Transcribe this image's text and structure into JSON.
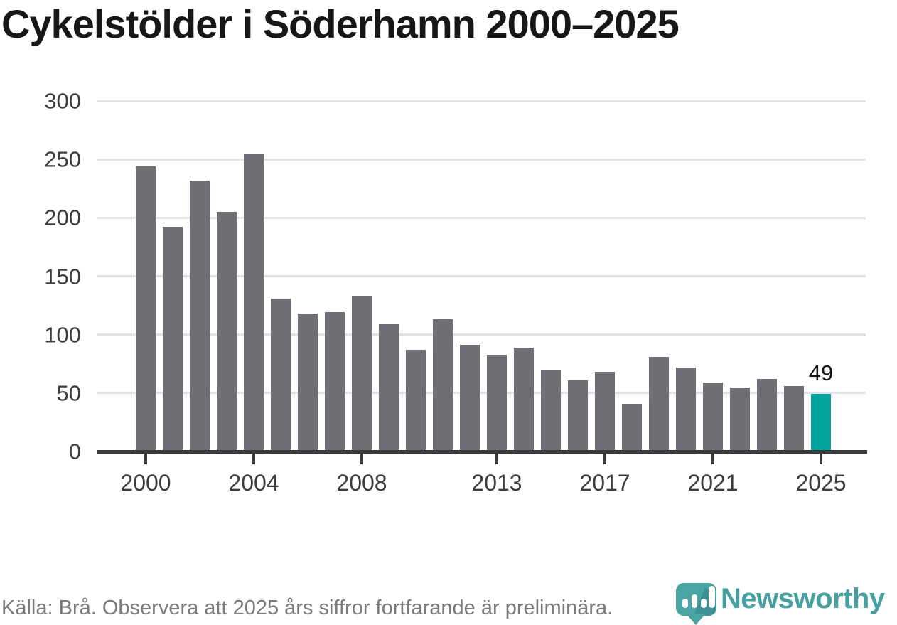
{
  "title": "Cykelstölder i Söderhamn 2000–2025",
  "footer": {
    "source_note": "Källa: Brå. Observera att 2025 års siffror fortfarande är preliminära."
  },
  "branding": {
    "logo_text": "Newsworthy",
    "logo_icon": "newsworthy-pin-barchart-icon",
    "logo_color": "#46a09f",
    "logo_icon_color": "#4aa5a2",
    "logo_icon_shadow_color": "#3d9194"
  },
  "chart_data": {
    "type": "bar",
    "title": "Cykelstölder i Söderhamn 2000–2025",
    "categories": [
      2000,
      2001,
      2002,
      2003,
      2004,
      2005,
      2006,
      2007,
      2008,
      2009,
      2010,
      2011,
      2012,
      2013,
      2014,
      2015,
      2016,
      2017,
      2018,
      2019,
      2020,
      2021,
      2022,
      2023,
      2024,
      2025
    ],
    "values": [
      244,
      192,
      232,
      205,
      255,
      131,
      118,
      119,
      133,
      109,
      87,
      113,
      91,
      83,
      89,
      70,
      61,
      68,
      41,
      81,
      72,
      59,
      55,
      62,
      56,
      49
    ],
    "bar_color": "#6e6e74",
    "highlight": {
      "category": 2025,
      "value": 49,
      "label": "49",
      "color": "#00a49c"
    },
    "y_axis": {
      "ticks": [
        0,
        50,
        100,
        150,
        200,
        250,
        300
      ],
      "range": [
        0,
        300
      ]
    },
    "x_axis": {
      "tick_labels": [
        "2000",
        "2004",
        "2008",
        "2013",
        "2017",
        "2021",
        "2025"
      ]
    },
    "grid": "horizontal",
    "gridline_color": "#e2e2e4",
    "axis_color": "#3a3a3a",
    "legend": false
  }
}
